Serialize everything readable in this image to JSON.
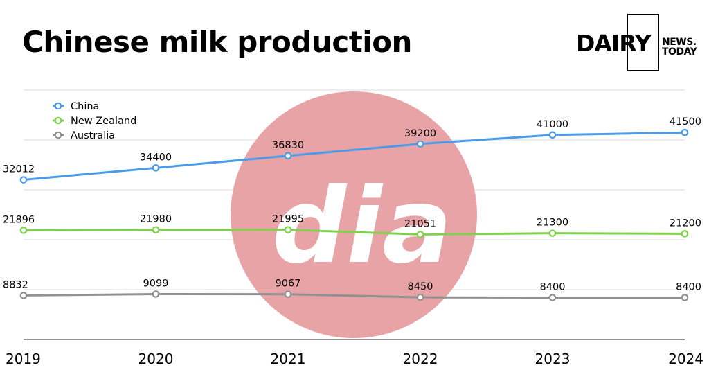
{
  "header": {
    "title": "Chinese milk production"
  },
  "brand": {
    "name_main": "DAIRY",
    "name_line1": "NEWS.",
    "name_line2": "TODAY"
  },
  "watermark": {
    "text": "dia",
    "color": "#e8a3a6"
  },
  "chart_data": {
    "type": "line",
    "title": "Chinese milk production",
    "xlabel": "",
    "ylabel": "",
    "x": [
      "2019",
      "2020",
      "2021",
      "2022",
      "2023",
      "2024"
    ],
    "ylim": [
      0,
      50000
    ],
    "grid": true,
    "legend_position": "top-left",
    "series": [
      {
        "name": "China",
        "color": "#4a9bea",
        "values": [
          32012,
          34400,
          36830,
          39200,
          41000,
          41500
        ]
      },
      {
        "name": "New Zealand",
        "color": "#7fd34b",
        "values": [
          21896,
          21980,
          21995,
          21051,
          21300,
          21200
        ]
      },
      {
        "name": "Australia",
        "color": "#919191",
        "values": [
          8832,
          9099,
          9067,
          8450,
          8400,
          8400
        ]
      }
    ]
  }
}
